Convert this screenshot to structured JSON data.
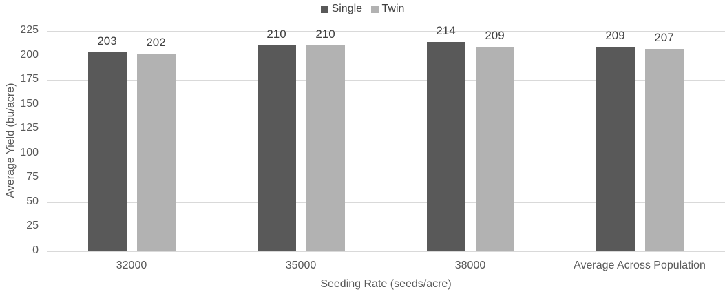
{
  "chart_data": {
    "type": "bar",
    "title": "",
    "categories": [
      "32000",
      "35000",
      "38000",
      "Average Across Population"
    ],
    "series": [
      {
        "name": "Single",
        "color": "#595959",
        "values": [
          203,
          210,
          214,
          209
        ]
      },
      {
        "name": "Twin",
        "color": "#b2b2b2",
        "values": [
          202,
          210,
          209,
          207
        ]
      }
    ],
    "xlabel": "Seeding Rate (seeds/acre)",
    "ylabel": "Average Yield (bu/acre)",
    "ylim": [
      0,
      225
    ],
    "yticks": [
      0,
      25,
      50,
      75,
      100,
      125,
      150,
      175,
      200,
      225
    ],
    "grid": true,
    "legend_position": "top"
  },
  "legend": {
    "single": "Single",
    "twin": "Twin"
  },
  "axis": {
    "xlabel": "Seeding Rate (seeds/acre)",
    "ylabel": "Average Yield (bu/acre)"
  }
}
